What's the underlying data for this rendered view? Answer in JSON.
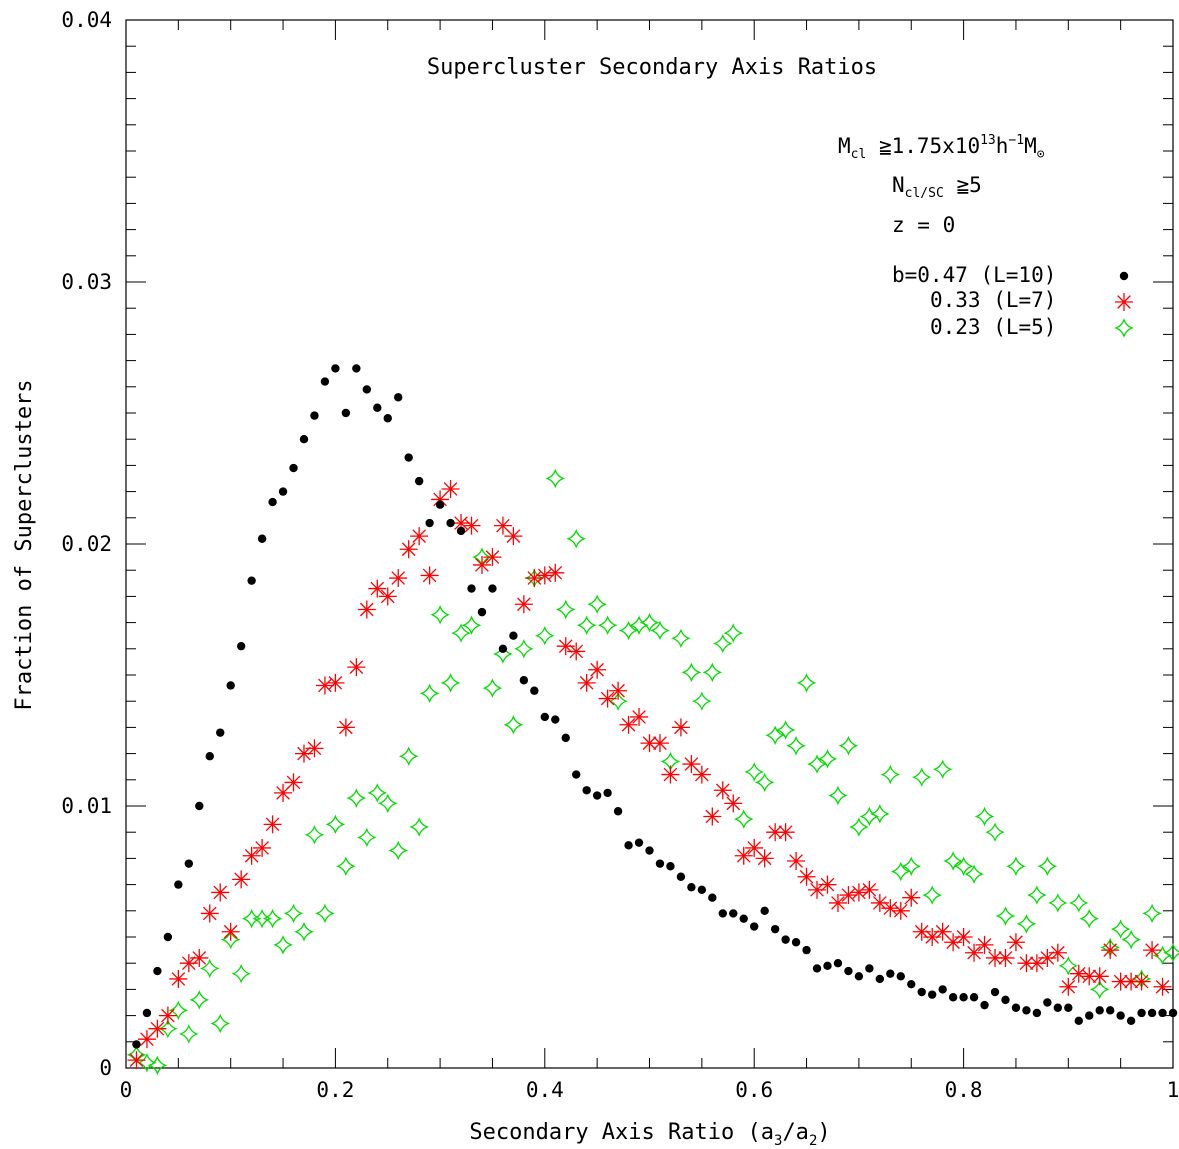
{
  "chart_data": {
    "type": "scatter",
    "title": "Supercluster Secondary Axis Ratios",
    "xlabel": "Secondary Axis Ratio (a",
    "xlabel_sub": "3",
    "xlabel_mid": "/a",
    "xlabel_sub2": "2",
    "xlabel_end": ")",
    "ylabel": "Fraction of Superclusters",
    "xlim": [
      0,
      1
    ],
    "ylim": [
      0,
      0.04
    ],
    "x_ticks": [
      "0",
      "0.2",
      "0.4",
      "0.6",
      "0.8",
      "1"
    ],
    "y_ticks": [
      "0",
      "0.01",
      "0.02",
      "0.03",
      "0.04"
    ],
    "annotations": {
      "mass_pre": "M",
      "mass_sub": "cl",
      "mass_mid": " ≧1.75x10",
      "mass_sup": "13",
      "mass_h": "h",
      "mass_sup2": "−1",
      "mass_m": "M",
      "mass_sun": "⊙",
      "n_pre": "N",
      "n_sub": "cl/SC",
      "n_post": " ≧5",
      "z": "z = 0"
    },
    "series": [
      {
        "name": "b=0.47 (L=10)",
        "marker": "dot",
        "color": "#000000",
        "x": [
          0.01,
          0.02,
          0.03,
          0.04,
          0.05,
          0.06,
          0.07,
          0.08,
          0.09,
          0.1,
          0.11,
          0.12,
          0.13,
          0.14,
          0.15,
          0.16,
          0.17,
          0.18,
          0.19,
          0.2,
          0.21,
          0.22,
          0.23,
          0.24,
          0.25,
          0.26,
          0.27,
          0.28,
          0.29,
          0.3,
          0.31,
          0.32,
          0.33,
          0.34,
          0.35,
          0.36,
          0.37,
          0.38,
          0.39,
          0.4,
          0.41,
          0.42,
          0.43,
          0.44,
          0.45,
          0.46,
          0.47,
          0.48,
          0.49,
          0.5,
          0.51,
          0.52,
          0.53,
          0.54,
          0.55,
          0.56,
          0.57,
          0.58,
          0.59,
          0.6,
          0.61,
          0.62,
          0.63,
          0.64,
          0.65,
          0.66,
          0.67,
          0.68,
          0.69,
          0.7,
          0.71,
          0.72,
          0.73,
          0.74,
          0.75,
          0.76,
          0.77,
          0.78,
          0.79,
          0.8,
          0.81,
          0.82,
          0.83,
          0.84,
          0.85,
          0.86,
          0.87,
          0.88,
          0.89,
          0.9,
          0.91,
          0.92,
          0.93,
          0.94,
          0.95,
          0.96,
          0.97,
          0.98,
          0.99,
          1.0
        ],
        "values": [
          0.0009,
          0.0021,
          0.0037,
          0.005,
          0.007,
          0.0078,
          0.01,
          0.0119,
          0.0128,
          0.0146,
          0.0161,
          0.0186,
          0.0202,
          0.0216,
          0.022,
          0.0229,
          0.024,
          0.0249,
          0.0262,
          0.0267,
          0.025,
          0.0267,
          0.0259,
          0.0252,
          0.0248,
          0.0256,
          0.0233,
          0.0224,
          0.0208,
          0.0215,
          0.0208,
          0.0205,
          0.0183,
          0.0174,
          0.0183,
          0.016,
          0.0165,
          0.0148,
          0.0144,
          0.0134,
          0.0133,
          0.0126,
          0.0112,
          0.0106,
          0.0104,
          0.0105,
          0.0098,
          0.0085,
          0.0086,
          0.0083,
          0.0078,
          0.0077,
          0.0073,
          0.0069,
          0.0068,
          0.0065,
          0.0059,
          0.0059,
          0.0057,
          0.0054,
          0.006,
          0.0053,
          0.0049,
          0.0048,
          0.0045,
          0.0038,
          0.0039,
          0.004,
          0.0037,
          0.0035,
          0.0038,
          0.0034,
          0.0036,
          0.0035,
          0.0032,
          0.0029,
          0.0028,
          0.003,
          0.0027,
          0.0027,
          0.0027,
          0.0024,
          0.0029,
          0.0026,
          0.0023,
          0.0022,
          0.0021,
          0.0025,
          0.0023,
          0.0023,
          0.0018,
          0.002,
          0.0022,
          0.0022,
          0.002,
          0.0018,
          0.0021,
          0.0021,
          0.0021,
          0.0021
        ]
      },
      {
        "name": "0.33 (L=7)",
        "marker": "asterisk",
        "color": "#ff0000",
        "x": [
          0.01,
          0.02,
          0.03,
          0.04,
          0.05,
          0.06,
          0.07,
          0.08,
          0.09,
          0.1,
          0.11,
          0.12,
          0.13,
          0.14,
          0.15,
          0.16,
          0.17,
          0.18,
          0.19,
          0.2,
          0.21,
          0.22,
          0.23,
          0.24,
          0.25,
          0.26,
          0.27,
          0.28,
          0.29,
          0.3,
          0.31,
          0.32,
          0.33,
          0.34,
          0.35,
          0.36,
          0.37,
          0.38,
          0.39,
          0.4,
          0.41,
          0.42,
          0.43,
          0.44,
          0.45,
          0.46,
          0.47,
          0.48,
          0.49,
          0.5,
          0.51,
          0.52,
          0.53,
          0.54,
          0.55,
          0.56,
          0.57,
          0.58,
          0.59,
          0.6,
          0.61,
          0.62,
          0.63,
          0.64,
          0.65,
          0.66,
          0.67,
          0.68,
          0.69,
          0.7,
          0.71,
          0.72,
          0.73,
          0.74,
          0.75,
          0.76,
          0.77,
          0.78,
          0.79,
          0.8,
          0.81,
          0.82,
          0.83,
          0.84,
          0.85,
          0.86,
          0.87,
          0.88,
          0.89,
          0.9,
          0.91,
          0.92,
          0.93,
          0.94,
          0.95,
          0.96,
          0.97,
          0.98,
          0.99
        ],
        "values": [
          0.0003,
          0.0011,
          0.0015,
          0.002,
          0.0034,
          0.004,
          0.0042,
          0.0059,
          0.0067,
          0.0052,
          0.0072,
          0.0081,
          0.0084,
          0.0093,
          0.0105,
          0.0109,
          0.012,
          0.0122,
          0.0146,
          0.0147,
          0.013,
          0.0153,
          0.0175,
          0.0183,
          0.018,
          0.0187,
          0.0198,
          0.0203,
          0.0188,
          0.0217,
          0.0221,
          0.0208,
          0.0207,
          0.0192,
          0.0195,
          0.0207,
          0.0203,
          0.0177,
          0.0187,
          0.0188,
          0.0189,
          0.0161,
          0.0159,
          0.0147,
          0.0152,
          0.0141,
          0.0144,
          0.0131,
          0.0134,
          0.0124,
          0.0124,
          0.0112,
          0.013,
          0.0116,
          0.0112,
          0.0096,
          0.0106,
          0.0101,
          0.0081,
          0.0084,
          0.008,
          0.009,
          0.009,
          0.0079,
          0.0073,
          0.0068,
          0.007,
          0.0063,
          0.0066,
          0.0067,
          0.0068,
          0.0063,
          0.0061,
          0.006,
          0.0065,
          0.0052,
          0.005,
          0.0052,
          0.0048,
          0.005,
          0.0044,
          0.0047,
          0.0042,
          0.0042,
          0.0048,
          0.004,
          0.004,
          0.0042,
          0.0044,
          0.0031,
          0.0036,
          0.0035,
          0.0035,
          0.0045,
          0.0033,
          0.0033,
          0.0033,
          0.0045,
          0.0031
        ]
      },
      {
        "name": "0.23 (L=5)",
        "marker": "star4",
        "color": "#00dd00",
        "x": [
          0.01,
          0.02,
          0.03,
          0.04,
          0.05,
          0.06,
          0.07,
          0.08,
          0.09,
          0.1,
          0.11,
          0.12,
          0.13,
          0.14,
          0.15,
          0.16,
          0.17,
          0.18,
          0.19,
          0.2,
          0.21,
          0.22,
          0.23,
          0.24,
          0.25,
          0.26,
          0.27,
          0.28,
          0.29,
          0.3,
          0.31,
          0.32,
          0.33,
          0.34,
          0.35,
          0.36,
          0.37,
          0.38,
          0.39,
          0.4,
          0.41,
          0.42,
          0.43,
          0.44,
          0.45,
          0.46,
          0.47,
          0.48,
          0.49,
          0.5,
          0.51,
          0.52,
          0.53,
          0.54,
          0.55,
          0.56,
          0.57,
          0.58,
          0.59,
          0.6,
          0.61,
          0.62,
          0.63,
          0.64,
          0.65,
          0.66,
          0.67,
          0.68,
          0.69,
          0.7,
          0.71,
          0.72,
          0.73,
          0.74,
          0.75,
          0.76,
          0.77,
          0.78,
          0.79,
          0.8,
          0.81,
          0.82,
          0.83,
          0.84,
          0.85,
          0.86,
          0.87,
          0.88,
          0.89,
          0.9,
          0.91,
          0.92,
          0.93,
          0.94,
          0.95,
          0.96,
          0.97,
          0.98,
          0.99,
          1.0
        ],
        "values": [
          0.0005,
          0.0002,
          0.0001,
          0.0015,
          0.0022,
          0.0013,
          0.0026,
          0.0038,
          0.0017,
          0.0049,
          0.0036,
          0.0057,
          0.0057,
          0.0057,
          0.0047,
          0.0059,
          0.0052,
          0.0089,
          0.0059,
          0.0093,
          0.0077,
          0.0103,
          0.0088,
          0.0105,
          0.0101,
          0.0083,
          0.0119,
          0.0092,
          0.0143,
          0.0173,
          0.0147,
          0.0166,
          0.0169,
          0.0195,
          0.0145,
          0.0158,
          0.0131,
          0.016,
          0.0187,
          0.0165,
          0.0225,
          0.0175,
          0.0202,
          0.0169,
          0.0177,
          0.0169,
          0.014,
          0.0167,
          0.0169,
          0.017,
          0.0167,
          0.0117,
          0.0164,
          0.0151,
          0.014,
          0.0151,
          0.0162,
          0.0166,
          0.0095,
          0.0113,
          0.0109,
          0.0127,
          0.0129,
          0.0123,
          0.0147,
          0.0116,
          0.0118,
          0.0104,
          0.0123,
          0.0092,
          0.0096,
          0.0097,
          0.0112,
          0.0075,
          0.0077,
          0.0111,
          0.0066,
          0.0114,
          0.0079,
          0.0077,
          0.0074,
          0.0096,
          0.009,
          0.0058,
          0.0077,
          0.0055,
          0.0066,
          0.0077,
          0.0063,
          0.0039,
          0.0063,
          0.0057,
          0.003,
          0.0046,
          0.0053,
          0.0049,
          0.0034,
          0.0059,
          0.0043,
          0.0044
        ]
      }
    ]
  }
}
